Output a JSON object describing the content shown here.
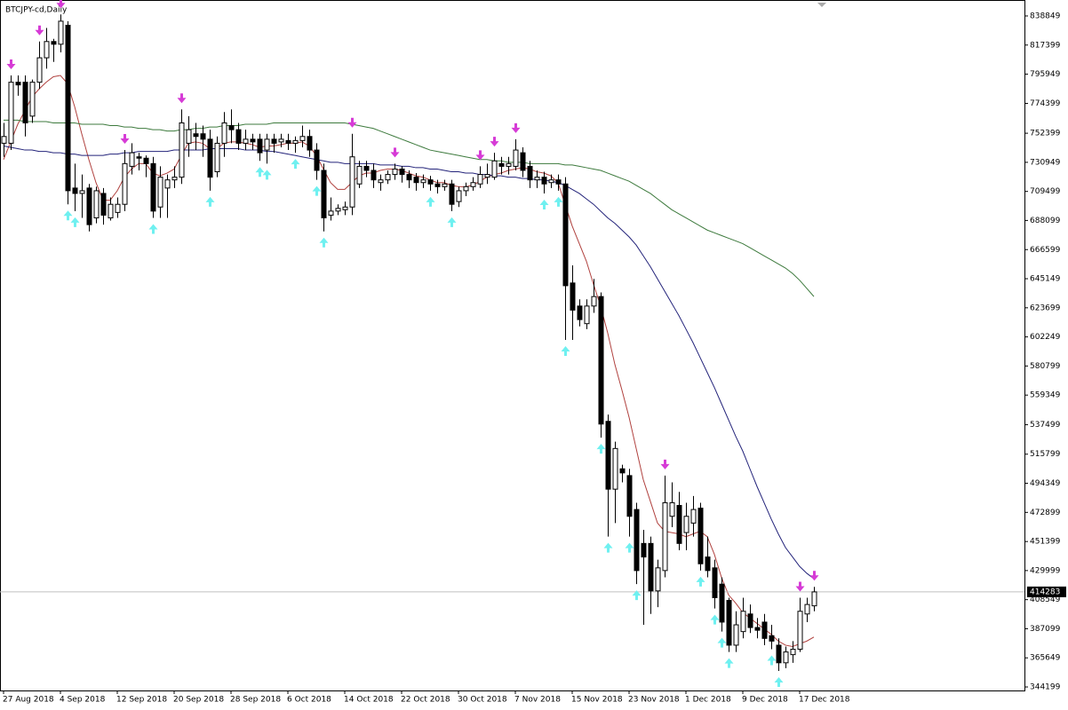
{
  "chart_data": {
    "type": "candlestick",
    "title": "BTCJPY-cd,Daily",
    "categories": [
      "27 Aug 2018",
      null,
      null,
      null,
      null,
      null,
      null,
      null,
      "4 Sep 2018",
      null,
      null,
      null,
      null,
      null,
      null,
      null,
      "12 Sep 2018",
      null,
      null,
      null,
      null,
      null,
      null,
      null,
      "20 Sep 2018",
      null,
      null,
      null,
      null,
      null,
      null,
      null,
      "28 Sep 2018",
      null,
      null,
      null,
      null,
      null,
      null,
      null,
      "6 Oct 2018",
      null,
      null,
      null,
      null,
      null,
      null,
      null,
      "14 Oct 2018",
      null,
      null,
      null,
      null,
      null,
      null,
      null,
      "22 Oct 2018",
      null,
      null,
      null,
      null,
      null,
      null,
      null,
      "30 Oct 2018",
      null,
      null,
      null,
      null,
      null,
      null,
      null,
      "7 Nov 2018",
      null,
      null,
      null,
      null,
      null,
      null,
      null,
      "15 Nov 2018",
      null,
      null,
      null,
      null,
      null,
      null,
      null,
      "23 Nov 2018",
      null,
      null,
      null,
      null,
      null,
      null,
      null,
      "1 Dec 2018",
      null,
      null,
      null,
      null,
      null,
      null,
      null,
      "9 Dec 2018",
      null,
      null,
      null,
      null,
      null,
      null,
      null,
      "17 Dec 2018",
      null,
      null
    ],
    "open": [
      745000,
      745000,
      790000,
      790000,
      765000,
      790000,
      808000,
      820000,
      818000,
      832000,
      712000,
      708000,
      712000,
      690000,
      708000,
      690000,
      694000,
      700000,
      728000,
      735000,
      734000,
      730000,
      698000,
      712000,
      718000,
      720000,
      745000,
      752000,
      752000,
      748000,
      724000,
      745000,
      758000,
      755000,
      745000,
      748000,
      748000,
      740000,
      748000,
      746000,
      747000,
      745000,
      747000,
      750000,
      740000,
      725000,
      692000,
      695000,
      696000,
      698000,
      715000,
      728000,
      725000,
      716000,
      718000,
      722000,
      726000,
      722000,
      720000,
      716000,
      718000,
      715000,
      713000,
      715000,
      702000,
      710000,
      713000,
      715000,
      720000,
      720000,
      730000,
      728000,
      728000,
      738000,
      728000,
      718000,
      720000,
      716000,
      718000,
      715000,
      642000,
      625000,
      612000,
      625000,
      632000,
      540000,
      490000,
      505000,
      500000,
      475000,
      450000,
      450000,
      415000,
      430000,
      470000,
      478000,
      458000,
      465000,
      476000,
      440000,
      432000,
      420000,
      408000,
      375000,
      385000,
      398000,
      388000,
      392000,
      382000,
      375000,
      362000,
      368000,
      372000,
      398000,
      404000
    ],
    "high": [
      760000,
      795000,
      795000,
      795000,
      792000,
      820000,
      830000,
      822000,
      840000,
      835000,
      730000,
      722000,
      715000,
      713000,
      712000,
      705000,
      705000,
      740000,
      745000,
      738000,
      736000,
      735000,
      728000,
      722000,
      728000,
      770000,
      765000,
      760000,
      758000,
      755000,
      750000,
      768000,
      770000,
      760000,
      755000,
      752000,
      752000,
      752000,
      752000,
      752000,
      752000,
      750000,
      758000,
      755000,
      745000,
      730000,
      705000,
      700000,
      702000,
      752000,
      732000,
      732000,
      730000,
      722000,
      725000,
      730000,
      728000,
      725000,
      723000,
      722000,
      721000,
      718000,
      718000,
      718000,
      713000,
      716000,
      720000,
      728000,
      730000,
      738000,
      735000,
      735000,
      748000,
      742000,
      732000,
      725000,
      724000,
      722000,
      722000,
      720000,
      655000,
      630000,
      630000,
      645000,
      635000,
      545000,
      525000,
      508000,
      505000,
      480000,
      460000,
      455000,
      438000,
      500000,
      495000,
      488000,
      480000,
      485000,
      480000,
      455000,
      438000,
      425000,
      410000,
      400000,
      410000,
      405000,
      395000,
      398000,
      390000,
      380000,
      374000,
      378000,
      410000,
      410000,
      418000
    ],
    "low": [
      735000,
      740000,
      780000,
      750000,
      760000,
      785000,
      800000,
      805000,
      812000,
      700000,
      695000,
      690000,
      680000,
      686000,
      685000,
      688000,
      690000,
      695000,
      722000,
      725000,
      720000,
      690000,
      690000,
      690000,
      712000,
      715000,
      735000,
      740000,
      735000,
      710000,
      720000,
      735000,
      745000,
      740000,
      740000,
      740000,
      732000,
      730000,
      738000,
      742000,
      740000,
      738000,
      742000,
      735000,
      718000,
      680000,
      688000,
      692000,
      692000,
      692000,
      712000,
      720000,
      712000,
      710000,
      715000,
      718000,
      716000,
      712000,
      710000,
      712000,
      710000,
      708000,
      710000,
      695000,
      698000,
      706000,
      710000,
      712000,
      715000,
      718000,
      722000,
      722000,
      725000,
      720000,
      712000,
      712000,
      708000,
      712000,
      710000,
      600000,
      600000,
      610000,
      608000,
      620000,
      528000,
      455000,
      465000,
      495000,
      455000,
      420000,
      390000,
      398000,
      403000,
      425000,
      462000,
      445000,
      445000,
      455000,
      430000,
      425000,
      402000,
      385000,
      370000,
      370000,
      380000,
      384000,
      380000,
      375000,
      372000,
      356000,
      358000,
      362000,
      370000,
      392000,
      400000
    ],
    "close": [
      750000,
      790000,
      788000,
      760000,
      790000,
      808000,
      820000,
      818000,
      835000,
      710000,
      708000,
      710000,
      685000,
      710000,
      692000,
      700000,
      700000,
      730000,
      738000,
      734000,
      730000,
      695000,
      720000,
      718000,
      720000,
      760000,
      755000,
      750000,
      748000,
      720000,
      745000,
      760000,
      755000,
      745000,
      748000,
      746000,
      738000,
      748000,
      745000,
      748000,
      745000,
      747000,
      750000,
      740000,
      725000,
      690000,
      695000,
      697000,
      698000,
      735000,
      728000,
      725000,
      718000,
      718000,
      722000,
      726000,
      722000,
      718000,
      716000,
      718000,
      715000,
      713000,
      715000,
      700000,
      710000,
      713000,
      716000,
      722000,
      722000,
      732000,
      728000,
      730000,
      740000,
      725000,
      718000,
      720000,
      715000,
      718000,
      715000,
      640000,
      622000,
      615000,
      625000,
      632000,
      538000,
      490000,
      520000,
      502000,
      470000,
      430000,
      440000,
      415000,
      432000,
      480000,
      480000,
      450000,
      470000,
      475000,
      435000,
      430000,
      410000,
      392000,
      375000,
      390000,
      400000,
      388000,
      386000,
      380000,
      378000,
      362000,
      370000,
      372000,
      400000,
      405000,
      414283
    ],
    "series": [
      {
        "color": "#b0413e",
        "values": [
          733000,
          746000,
          759000,
          769000,
          779000,
          785000,
          790000,
          794000,
          795000,
          789000,
          772000,
          752000,
          733000,
          716000,
          703000,
          703000,
          710000,
          720000,
          726000,
          730000,
          730000,
          723000,
          721000,
          723000,
          726000,
          736000,
          745000,
          746000,
          745000,
          741000,
          741000,
          745000,
          746000,
          746000,
          745000,
          744000,
          742000,
          743000,
          743000,
          744000,
          745000,
          745000,
          746000,
          743000,
          736000,
          726000,
          716000,
          711000,
          711000,
          716000,
          721000,
          723000,
          723000,
          725000,
          726000,
          726000,
          725000,
          723000,
          721000,
          720000,
          718000,
          716000,
          716000,
          714000,
          713000,
          713000,
          714000,
          717000,
          720000,
          722000,
          723000,
          725000,
          726000,
          727000,
          726000,
          724000,
          723000,
          721000,
          716000,
          700000,
          684000,
          671000,
          658000,
          641000,
          625000,
          605000,
          582000,
          563000,
          543000,
          520000,
          497000,
          481000,
          465000,
          459000,
          458000,
          457000,
          455000,
          457000,
          459000,
          455000,
          442000,
          425000,
          412000,
          406000,
          399000,
          395000,
          391000,
          387000,
          383000,
          378000,
          375000,
          374000,
          376000,
          378000,
          381000
        ]
      },
      {
        "color": "#23237a",
        "values": [
          743000,
          742000,
          741000,
          740000,
          740000,
          739000,
          739000,
          738000,
          738000,
          737000,
          737000,
          736000,
          736000,
          736000,
          736000,
          737000,
          737000,
          738000,
          738000,
          739000,
          739000,
          739000,
          739000,
          739000,
          740000,
          740000,
          740000,
          740000,
          740000,
          741000,
          741000,
          741000,
          741000,
          741000,
          740000,
          740000,
          740000,
          739000,
          739000,
          738000,
          737000,
          736000,
          735000,
          734000,
          733000,
          732000,
          731000,
          731000,
          730000,
          730000,
          730000,
          730000,
          730000,
          729000,
          729000,
          729000,
          728000,
          728000,
          727000,
          727000,
          726000,
          726000,
          725000,
          724000,
          724000,
          723000,
          723000,
          722000,
          722000,
          721000,
          721000,
          720000,
          720000,
          719000,
          719000,
          718000,
          718000,
          717000,
          716000,
          714000,
          711000,
          708000,
          704000,
          700000,
          695000,
          690000,
          686000,
          681000,
          676000,
          670000,
          662000,
          654000,
          645000,
          636000,
          627000,
          618000,
          608000,
          598000,
          587000,
          576000,
          565000,
          553000,
          541000,
          529000,
          518000,
          505000,
          492000,
          480000,
          468000,
          457000,
          447000,
          440000,
          433000,
          428000,
          424000
        ]
      },
      {
        "color": "#3d7a3d",
        "values": [
          762000,
          762000,
          762000,
          761000,
          761000,
          761000,
          761000,
          760000,
          760000,
          760000,
          760000,
          759000,
          759000,
          759000,
          759000,
          758000,
          758000,
          757000,
          757000,
          756000,
          756000,
          755000,
          755000,
          754000,
          754000,
          755000,
          755000,
          756000,
          756000,
          757000,
          757000,
          758000,
          758000,
          758000,
          759000,
          759000,
          759000,
          759000,
          760000,
          760000,
          760000,
          760000,
          760000,
          760000,
          760000,
          760000,
          760000,
          760000,
          760000,
          759000,
          758000,
          757000,
          756000,
          754000,
          752000,
          750000,
          748000,
          746000,
          744000,
          742000,
          740000,
          739000,
          738000,
          737000,
          736000,
          735000,
          734000,
          733000,
          733000,
          732000,
          732000,
          731000,
          731000,
          731000,
          730000,
          730000,
          730000,
          730000,
          730000,
          729000,
          729000,
          728000,
          727000,
          726000,
          725000,
          723000,
          721000,
          719000,
          717000,
          714000,
          711000,
          708000,
          704000,
          700000,
          696000,
          693000,
          690000,
          687000,
          684000,
          681000,
          679000,
          677000,
          675000,
          673000,
          671000,
          668000,
          665000,
          662000,
          659000,
          656000,
          653000,
          649000,
          644000,
          638000,
          632000
        ]
      }
    ],
    "down_arrows": [
      1,
      5,
      8,
      17,
      25,
      49,
      55,
      67,
      69,
      72,
      93,
      112,
      114
    ],
    "down_arrow_color": "#d63bd6",
    "up_arrows": [
      9,
      10,
      21,
      29,
      36,
      37,
      41,
      44,
      45,
      60,
      63,
      76,
      78,
      79,
      84,
      85,
      88,
      89,
      98,
      100,
      101,
      102,
      108,
      109
    ],
    "up_arrow_color": "#6ff0f0",
    "ylim": [
      341600,
      849300
    ],
    "yticks": [
      838849,
      817399,
      795949,
      774399,
      752399,
      730949,
      709499,
      688099,
      666599,
      645149,
      623699,
      602249,
      580799,
      559349,
      537499,
      515799,
      494349,
      472899,
      451399,
      429999,
      408549,
      387099,
      365649,
      344199
    ]
  }
}
